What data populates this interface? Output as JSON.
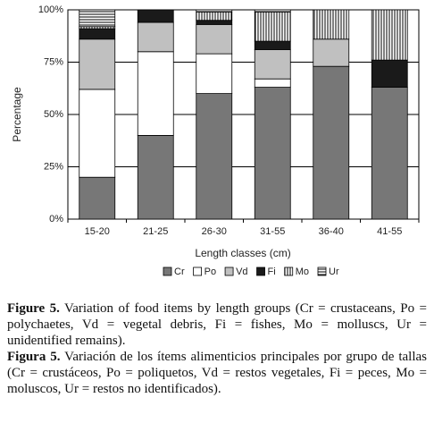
{
  "chart_data": {
    "type": "stacked-bar",
    "y_label": "Percentage",
    "x_label": "Length classes (cm)",
    "categories": [
      "15-20",
      "21-25",
      "26-30",
      "31-55",
      "36-40",
      "41-55"
    ],
    "series": [
      {
        "name": "Cr",
        "color": "#777777",
        "values": [
          20,
          40,
          60,
          63,
          73,
          63
        ]
      },
      {
        "name": "Po",
        "color": "#ffffff",
        "values": [
          42,
          40,
          19,
          4,
          0,
          0
        ]
      },
      {
        "name": "Vd",
        "color": "#c0c0c0",
        "values": [
          24,
          14,
          14,
          14,
          13,
          0
        ]
      },
      {
        "name": "Fi",
        "color": "#1a1a1a",
        "values": [
          5,
          6,
          2,
          4,
          0,
          13
        ]
      },
      {
        "name": "Mo",
        "color": "#ffffff",
        "hatch": "vertical",
        "values": [
          1,
          0,
          4,
          14,
          14,
          24
        ]
      },
      {
        "name": "Ur",
        "color": "#ffffff",
        "hatch": "horizontal",
        "values": [
          8,
          0,
          1,
          1,
          0,
          0
        ]
      }
    ],
    "ylim": [
      0,
      100
    ],
    "yticks": [
      {
        "value": 0,
        "label": "0%"
      },
      {
        "value": 25,
        "label": "25%"
      },
      {
        "value": 50,
        "label": "50%"
      },
      {
        "value": 75,
        "label": "75%"
      },
      {
        "value": 100,
        "label": "100%"
      }
    ],
    "grid": true,
    "legend": "bottom"
  },
  "caption": {
    "en": {
      "label": "Figure 5.",
      "text": "Variation of food items by length groups (Cr = crustaceans, Po = polychaetes, Vd = vegetal debris, Fi = fishes, Mo = molluscs, Ur = unidentified remains)."
    },
    "es": {
      "label": "Figura 5.",
      "text": "Variación de los ítems alimenticios principales por grupo de tallas (Cr = crustáceos, Po = poliquetos, Vd = restos vegetales, Fi = peces, Mo = moluscos, Ur = restos no identificados)."
    }
  }
}
